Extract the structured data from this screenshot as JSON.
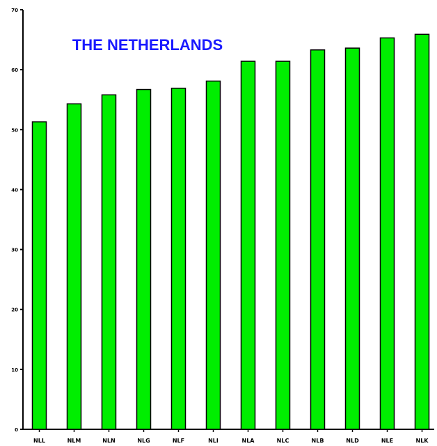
{
  "chart_data": {
    "type": "bar",
    "title": "THE NETHERLANDS",
    "xlabel": "",
    "ylabel": "",
    "categories": [
      "NLL",
      "NLM",
      "NLN",
      "NLG",
      "NLF",
      "NLI",
      "NLA",
      "NLC",
      "NLB",
      "NLD",
      "NLE",
      "NLK"
    ],
    "values": [
      51.3,
      54.3,
      55.8,
      56.7,
      56.9,
      58.1,
      61.4,
      61.4,
      63.3,
      63.6,
      65.3,
      65.9
    ],
    "ylim": [
      0,
      70
    ],
    "yticks": [
      "0",
      "10",
      "20",
      "30",
      "40",
      "50",
      "60",
      "70"
    ],
    "grid": false,
    "colors": {
      "bar_fill": "#00ee00",
      "bar_stroke": "#000000",
      "title": "#1a1aff",
      "axis": "#000000"
    }
  }
}
